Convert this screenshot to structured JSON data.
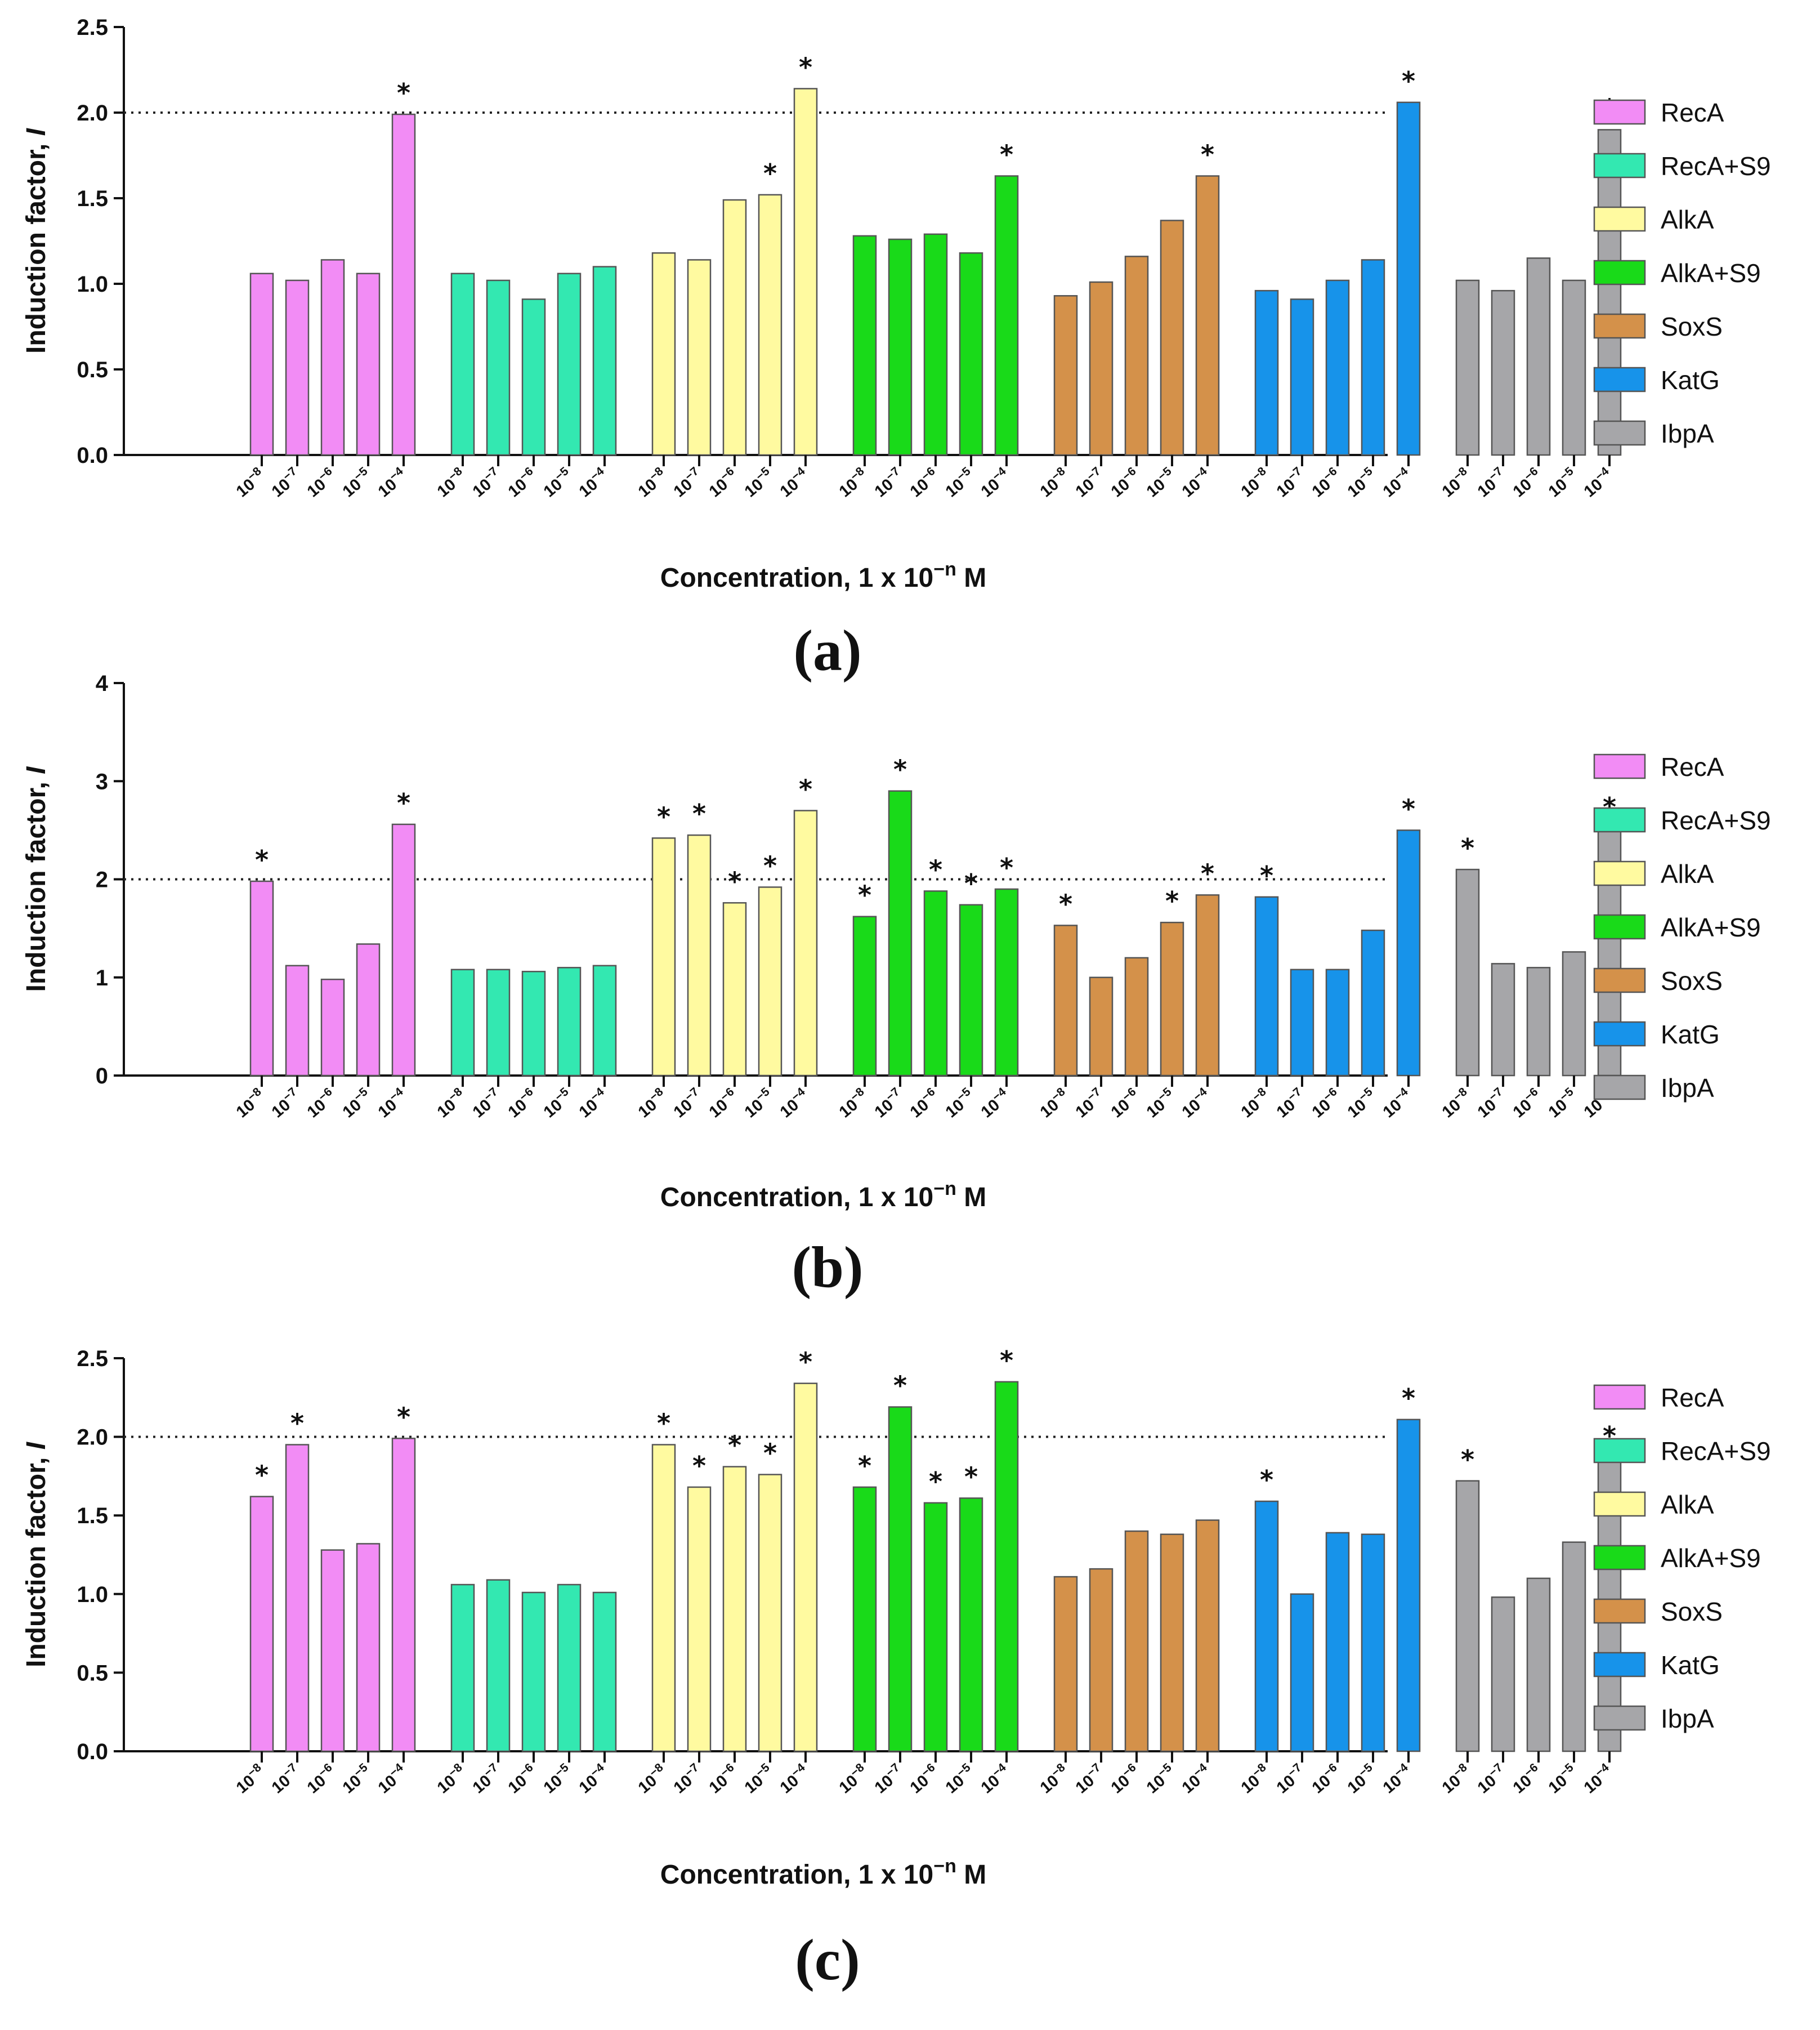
{
  "colors": {
    "RecA": "#f28cf5",
    "RecA+S9": "#33e8b1",
    "AlkA": "#fffaa0",
    "AlkA+S9": "#19da19",
    "SoxS": "#d4914a",
    "KatG": "#1793ea",
    "IbpA": "#a6a6a9"
  },
  "concentrations": [
    {
      "base": "10",
      "exp": "−8"
    },
    {
      "base": "10",
      "exp": "−7"
    },
    {
      "base": "10",
      "exp": "−6"
    },
    {
      "base": "10",
      "exp": "−5"
    },
    {
      "base": "10",
      "exp": "−4"
    }
  ],
  "chart_data": [
    {
      "type": "bar",
      "panel_label": "(a)",
      "ylabel": "Induction factor, ",
      "ylabel_symbol": "I",
      "xlabel": "Concentration, 1 x 10",
      "xlabel_exp": "−n",
      "xlabel_unit": " M",
      "ylim": [
        0,
        2.5
      ],
      "yticks": [
        "0.0",
        "0.5",
        "1.0",
        "1.5",
        "2.0",
        "2.5"
      ],
      "threshold": 2.0,
      "significance_marker": "*",
      "categories": [
        "10^-8",
        "10^-7",
        "10^-6",
        "10^-5",
        "10^-4"
      ],
      "legend": [
        "RecA",
        "RecA+S9",
        "AlkA",
        "AlkA+S9",
        "SoxS",
        "KatG",
        "IbpA"
      ],
      "series": [
        {
          "name": "RecA",
          "values": [
            1.06,
            1.02,
            1.14,
            1.06,
            1.99
          ],
          "significant": [
            false,
            false,
            false,
            false,
            true
          ]
        },
        {
          "name": "RecA+S9",
          "values": [
            1.06,
            1.02,
            0.91,
            1.06,
            1.1
          ],
          "significant": [
            false,
            false,
            false,
            false,
            false
          ]
        },
        {
          "name": "AlkA",
          "values": [
            1.18,
            1.14,
            1.49,
            1.52,
            2.14
          ],
          "significant": [
            false,
            false,
            false,
            true,
            true
          ]
        },
        {
          "name": "AlkA+S9",
          "values": [
            1.28,
            1.26,
            1.29,
            1.18,
            1.63
          ],
          "significant": [
            false,
            false,
            false,
            false,
            true
          ]
        },
        {
          "name": "SoxS",
          "values": [
            0.93,
            1.01,
            1.16,
            1.37,
            1.63
          ],
          "significant": [
            false,
            false,
            false,
            false,
            true
          ]
        },
        {
          "name": "KatG",
          "values": [
            0.96,
            0.91,
            1.02,
            1.14,
            2.06
          ],
          "significant": [
            false,
            false,
            false,
            false,
            true
          ]
        },
        {
          "name": "IbpA",
          "values": [
            1.02,
            0.96,
            1.15,
            1.02,
            1.9
          ],
          "significant": [
            false,
            false,
            false,
            false,
            true
          ]
        }
      ]
    },
    {
      "type": "bar",
      "panel_label": "(b)",
      "ylabel": "Induction factor, ",
      "ylabel_symbol": "I",
      "xlabel": "Concentration, 1 x 10",
      "xlabel_exp": "−n",
      "xlabel_unit": " M",
      "ylim": [
        0,
        4
      ],
      "yticks": [
        "0",
        "1",
        "2",
        "3",
        "4"
      ],
      "threshold": 2.0,
      "significance_marker": "*",
      "categories": [
        "10^-8",
        "10^-7",
        "10^-6",
        "10^-5",
        "10^-4"
      ],
      "legend": [
        "RecA",
        "RecA+S9",
        "AlkA",
        "AlkA+S9",
        "SoxS",
        "KatG",
        "IbpA"
      ],
      "series": [
        {
          "name": "RecA",
          "values": [
            1.98,
            1.12,
            0.98,
            1.34,
            2.56
          ],
          "significant": [
            true,
            false,
            false,
            false,
            true
          ]
        },
        {
          "name": "RecA+S9",
          "values": [
            1.08,
            1.08,
            1.06,
            1.1,
            1.12
          ],
          "significant": [
            false,
            false,
            false,
            false,
            false
          ]
        },
        {
          "name": "AlkA",
          "values": [
            2.42,
            2.45,
            1.76,
            1.92,
            2.7
          ],
          "significant": [
            true,
            true,
            true,
            true,
            true
          ]
        },
        {
          "name": "AlkA+S9",
          "values": [
            1.62,
            2.9,
            1.88,
            1.74,
            1.9
          ],
          "significant": [
            true,
            true,
            true,
            true,
            true
          ]
        },
        {
          "name": "SoxS",
          "values": [
            1.53,
            1.0,
            1.2,
            1.56,
            1.84
          ],
          "significant": [
            true,
            false,
            false,
            true,
            true
          ]
        },
        {
          "name": "KatG",
          "values": [
            1.82,
            1.08,
            1.08,
            1.48,
            2.5
          ],
          "significant": [
            true,
            false,
            false,
            false,
            true
          ]
        },
        {
          "name": "IbpA",
          "values": [
            2.1,
            1.14,
            1.1,
            1.26,
            2.52
          ],
          "significant": [
            true,
            false,
            false,
            false,
            true
          ]
        }
      ]
    },
    {
      "type": "bar",
      "panel_label": "(c)",
      "ylabel": "Induction factor, ",
      "ylabel_symbol": "I",
      "xlabel": "Concentration, 1 x 10",
      "xlabel_exp": "−n",
      "xlabel_unit": " M",
      "ylim": [
        0,
        2.5
      ],
      "yticks": [
        "0.0",
        "0.5",
        "1.0",
        "1.5",
        "2.0",
        "2.5"
      ],
      "threshold": 2.0,
      "significance_marker": "*",
      "categories": [
        "10^-8",
        "10^-7",
        "10^-6",
        "10^-5",
        "10^-4"
      ],
      "legend": [
        "RecA",
        "RecA+S9",
        "AlkA",
        "AlkA+S9",
        "SoxS",
        "KatG",
        "IbpA"
      ],
      "series": [
        {
          "name": "RecA",
          "values": [
            1.62,
            1.95,
            1.28,
            1.32,
            1.99
          ],
          "significant": [
            true,
            true,
            false,
            false,
            true
          ]
        },
        {
          "name": "RecA+S9",
          "values": [
            1.06,
            1.09,
            1.01,
            1.06,
            1.01
          ],
          "significant": [
            false,
            false,
            false,
            false,
            false
          ]
        },
        {
          "name": "AlkA",
          "values": [
            1.95,
            1.68,
            1.81,
            1.76,
            2.34
          ],
          "significant": [
            true,
            true,
            true,
            true,
            true
          ]
        },
        {
          "name": "AlkA+S9",
          "values": [
            1.68,
            2.19,
            1.58,
            1.61,
            2.35
          ],
          "significant": [
            true,
            true,
            true,
            true,
            true
          ]
        },
        {
          "name": "SoxS",
          "values": [
            1.11,
            1.16,
            1.4,
            1.38,
            1.47
          ],
          "significant": [
            false,
            false,
            false,
            false,
            false
          ]
        },
        {
          "name": "KatG",
          "values": [
            1.59,
            1.0,
            1.39,
            1.38,
            2.11
          ],
          "significant": [
            true,
            false,
            false,
            false,
            true
          ]
        },
        {
          "name": "IbpA",
          "values": [
            1.72,
            0.98,
            1.1,
            1.33,
            1.87
          ],
          "significant": [
            true,
            false,
            false,
            false,
            true
          ]
        }
      ]
    }
  ]
}
